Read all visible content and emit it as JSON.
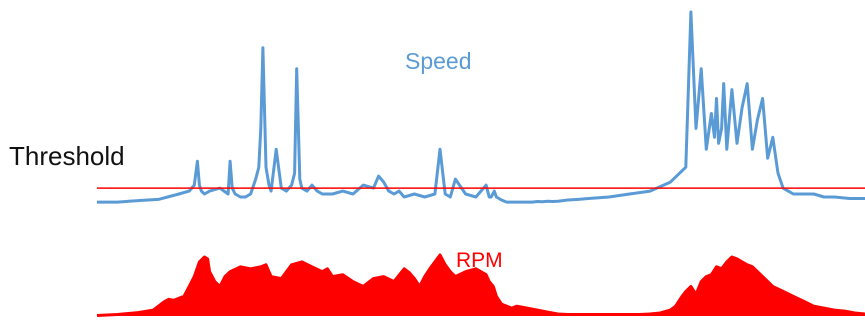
{
  "chart_data": [
    {
      "type": "line",
      "title": "Speed",
      "color": "#5b9bd5",
      "fill_under": false,
      "x": [
        0,
        20,
        40,
        60,
        80,
        90,
        95,
        98,
        100,
        102,
        105,
        110,
        120,
        128,
        130,
        132,
        135,
        140,
        145,
        150,
        155,
        158,
        160,
        162,
        165,
        168,
        170,
        175,
        180,
        185,
        190,
        193,
        195,
        198,
        200,
        205,
        210,
        215,
        220,
        230,
        240,
        250,
        260,
        270,
        275,
        280,
        285,
        290,
        295,
        300,
        310,
        320,
        330,
        335,
        340,
        345,
        350,
        360,
        370,
        380,
        383,
        385,
        388,
        390,
        395,
        400,
        405,
        410,
        415,
        420,
        425,
        430,
        435,
        440,
        445,
        450,
        455,
        460,
        470,
        480,
        500,
        520,
        540,
        560,
        575,
        580,
        585,
        590,
        595,
        600,
        603,
        605,
        607,
        610,
        612,
        615,
        618,
        620,
        625,
        630,
        635,
        640,
        645,
        650,
        655,
        660,
        665,
        670,
        675,
        680,
        690,
        700,
        710,
        720,
        735,
        750
      ],
      "y": [
        0.3,
        0.3,
        0.8,
        1.2,
        3,
        4,
        6,
        14,
        6,
        4,
        3,
        4,
        5,
        3,
        14,
        5,
        3,
        2,
        2,
        3,
        8,
        12,
        25,
        52,
        12,
        6,
        4,
        18,
        5,
        4,
        6,
        10,
        45,
        8,
        5,
        4,
        6,
        4,
        3,
        3,
        4,
        3,
        6,
        5,
        9,
        7,
        4,
        3,
        4,
        2,
        3,
        2,
        3,
        18,
        3,
        2,
        8,
        3,
        2,
        6,
        2,
        2,
        4,
        2,
        1,
        0.3,
        0.3,
        0.3,
        0.3,
        0.3,
        0.3,
        0.5,
        0.4,
        0.6,
        0.5,
        0.6,
        0.8,
        1,
        1.2,
        1.5,
        2,
        3,
        4,
        7,
        12,
        64,
        25,
        45,
        18,
        30,
        22,
        35,
        20,
        25,
        40,
        18,
        30,
        38,
        20,
        32,
        40,
        18,
        28,
        35,
        15,
        22,
        10,
        5,
        4,
        3,
        3,
        3,
        2,
        2,
        1.5,
        1.5
      ],
      "threshold": 5
    },
    {
      "type": "area",
      "title": "RPM",
      "color": "#ff0000",
      "fill_under": true,
      "x": [
        0,
        20,
        40,
        55,
        60,
        65,
        70,
        75,
        80,
        85,
        90,
        95,
        100,
        105,
        108,
        110,
        115,
        120,
        125,
        130,
        140,
        150,
        160,
        165,
        170,
        180,
        190,
        200,
        210,
        220,
        225,
        230,
        240,
        250,
        260,
        270,
        280,
        290,
        300,
        305,
        310,
        315,
        320,
        325,
        330,
        335,
        340,
        345,
        350,
        360,
        370,
        380,
        383,
        387,
        390,
        395,
        400,
        405,
        410,
        420,
        430,
        440,
        450,
        460,
        470,
        480,
        490,
        500,
        510,
        520,
        530,
        540,
        550,
        560,
        565,
        570,
        575,
        580,
        585,
        590,
        595,
        600,
        605,
        610,
        615,
        620,
        625,
        630,
        635,
        640,
        645,
        650,
        660,
        670,
        680,
        690,
        700,
        710,
        720,
        730,
        740,
        750
      ],
      "y": [
        0.5,
        1.5,
        3.5,
        6,
        10,
        14,
        17,
        16,
        18,
        20,
        30,
        40,
        55,
        60,
        58,
        45,
        35,
        30,
        40,
        45,
        50,
        48,
        50,
        52,
        40,
        38,
        52,
        55,
        50,
        45,
        48,
        40,
        42,
        35,
        30,
        38,
        40,
        35,
        48,
        44,
        38,
        30,
        40,
        48,
        55,
        62,
        52,
        45,
        40,
        45,
        48,
        42,
        35,
        30,
        20,
        12,
        10,
        8,
        10,
        8,
        6,
        4,
        2,
        1.5,
        1.5,
        1.5,
        1.5,
        1.5,
        1.5,
        1.5,
        1.5,
        2,
        3,
        6,
        10,
        18,
        25,
        30,
        22,
        35,
        40,
        42,
        50,
        48,
        55,
        60,
        58,
        55,
        52,
        50,
        45,
        40,
        30,
        25,
        20,
        15,
        10,
        8,
        6,
        5,
        3,
        2
      ]
    }
  ],
  "labels": {
    "threshold": "Threshold",
    "speed": "Speed",
    "rpm": "RPM"
  },
  "colors": {
    "speed": "#5b9bd5",
    "rpm": "#ff0000",
    "threshold_line": "#ff0000",
    "threshold_text": "#111111"
  }
}
